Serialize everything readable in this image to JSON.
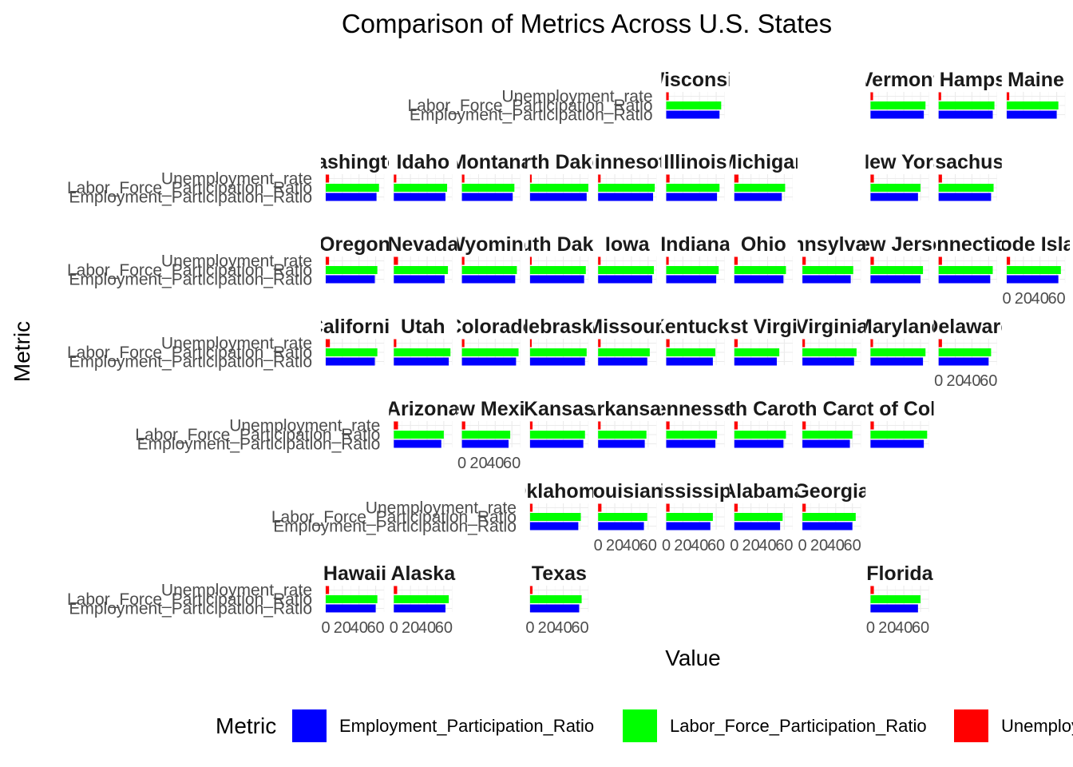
{
  "chart_data": {
    "type": "bar",
    "orientation": "horizontal",
    "layout": "faceted geographic grid",
    "title": "Comparison of Metrics Across U.S. States",
    "xlabel": "Value",
    "ylabel": "Metric",
    "xlim": [
      0,
      70
    ],
    "x_ticks": [
      "0",
      "20",
      "40",
      "60"
    ],
    "metrics": [
      "Employment_Participation_Ratio",
      "Labor_Force_Participation_Ratio",
      "Unemployment_rate"
    ],
    "legend": {
      "title": "Metric",
      "position": "bottom",
      "entries": [
        {
          "label": "Employment_Participation_Ratio",
          "color": "#0000ff"
        },
        {
          "label": "Labor_Force_Participation_Ratio",
          "color": "#00ff00"
        },
        {
          "label": "Unemployment_rate",
          "color": "#ff0000"
        }
      ]
    },
    "facets": [
      {
        "label": "Wisconsin",
        "row": 0,
        "col": 5,
        "values": [
          64,
          66,
          3
        ]
      },
      {
        "label": "Vermont",
        "row": 0,
        "col": 8,
        "values": [
          64,
          66,
          3
        ]
      },
      {
        "label": "New Hampshire",
        "row": 0,
        "col": 9,
        "values": [
          65,
          67,
          3
        ]
      },
      {
        "label": "Maine",
        "row": 0,
        "col": 10,
        "values": [
          60,
          62,
          3
        ]
      },
      {
        "label": "Washington",
        "row": 1,
        "col": 0,
        "values": [
          61,
          64,
          4
        ]
      },
      {
        "label": "Idaho",
        "row": 1,
        "col": 1,
        "values": [
          62,
          64,
          3
        ]
      },
      {
        "label": "Montana",
        "row": 1,
        "col": 2,
        "values": [
          61,
          63,
          3
        ]
      },
      {
        "label": "North Dakota",
        "row": 1,
        "col": 3,
        "values": [
          68,
          70,
          2
        ]
      },
      {
        "label": "Minnesota",
        "row": 1,
        "col": 4,
        "values": [
          66,
          68,
          3
        ]
      },
      {
        "label": "Illinois",
        "row": 1,
        "col": 5,
        "values": [
          61,
          64,
          4
        ]
      },
      {
        "label": "Michigan",
        "row": 1,
        "col": 6,
        "values": [
          57,
          61,
          5
        ]
      },
      {
        "label": "New York",
        "row": 1,
        "col": 8,
        "values": [
          57,
          60,
          4
        ]
      },
      {
        "label": "Massachusetts",
        "row": 1,
        "col": 9,
        "values": [
          63,
          66,
          4
        ]
      },
      {
        "label": "Oregon",
        "row": 2,
        "col": 0,
        "values": [
          59,
          62,
          4
        ]
      },
      {
        "label": "Nevada",
        "row": 2,
        "col": 1,
        "values": [
          61,
          65,
          5
        ]
      },
      {
        "label": "Wyoming",
        "row": 2,
        "col": 2,
        "values": [
          64,
          66,
          3
        ]
      },
      {
        "label": "South Dakota",
        "row": 2,
        "col": 3,
        "values": [
          65,
          67,
          2
        ]
      },
      {
        "label": "Iowa",
        "row": 2,
        "col": 4,
        "values": [
          65,
          67,
          3
        ]
      },
      {
        "label": "Indiana",
        "row": 2,
        "col": 5,
        "values": [
          60,
          63,
          3
        ]
      },
      {
        "label": "Ohio",
        "row": 2,
        "col": 6,
        "values": [
          59,
          62,
          4
        ]
      },
      {
        "label": "Pennsylvania",
        "row": 2,
        "col": 7,
        "values": [
          58,
          61,
          4
        ]
      },
      {
        "label": "New Jersey",
        "row": 2,
        "col": 8,
        "values": [
          60,
          63,
          4
        ]
      },
      {
        "label": "Connecticut",
        "row": 2,
        "col": 9,
        "values": [
          62,
          65,
          4
        ]
      },
      {
        "label": "Rhode Island",
        "row": 2,
        "col": 10,
        "values": [
          62,
          65,
          4
        ]
      },
      {
        "label": "California",
        "row": 3,
        "col": 0,
        "values": [
          59,
          62,
          5
        ]
      },
      {
        "label": "Utah",
        "row": 3,
        "col": 1,
        "values": [
          66,
          68,
          3
        ]
      },
      {
        "label": "Colorado",
        "row": 3,
        "col": 2,
        "values": [
          65,
          68,
          3
        ]
      },
      {
        "label": "Nebraska",
        "row": 3,
        "col": 3,
        "values": [
          66,
          68,
          2
        ]
      },
      {
        "label": "Missouri",
        "row": 3,
        "col": 4,
        "values": [
          59,
          62,
          3
        ]
      },
      {
        "label": "Kentucky",
        "row": 3,
        "col": 5,
        "values": [
          56,
          59,
          4
        ]
      },
      {
        "label": "West Virginia",
        "row": 3,
        "col": 6,
        "values": [
          51,
          54,
          4
        ]
      },
      {
        "label": "Virginia",
        "row": 3,
        "col": 7,
        "values": [
          62,
          65,
          3
        ]
      },
      {
        "label": "Maryland",
        "row": 3,
        "col": 8,
        "values": [
          63,
          66,
          3
        ]
      },
      {
        "label": "Delaware",
        "row": 3,
        "col": 9,
        "values": [
          60,
          63,
          4
        ]
      },
      {
        "label": "Arizona",
        "row": 4,
        "col": 1,
        "values": [
          57,
          60,
          5
        ]
      },
      {
        "label": "New Mexico",
        "row": 4,
        "col": 2,
        "values": [
          56,
          58,
          4
        ]
      },
      {
        "label": "Kansas",
        "row": 4,
        "col": 3,
        "values": [
          64,
          66,
          3
        ]
      },
      {
        "label": "Arkansas",
        "row": 4,
        "col": 4,
        "values": [
          56,
          58,
          3
        ]
      },
      {
        "label": "Tennessee",
        "row": 4,
        "col": 5,
        "values": [
          59,
          61,
          4
        ]
      },
      {
        "label": "North Carolina",
        "row": 4,
        "col": 6,
        "values": [
          59,
          62,
          4
        ]
      },
      {
        "label": "South Carolina",
        "row": 4,
        "col": 7,
        "values": [
          57,
          60,
          4
        ]
      },
      {
        "label": "District of Columbia",
        "row": 4,
        "col": 8,
        "values": [
          64,
          68,
          4
        ]
      },
      {
        "label": "Oklahoma",
        "row": 5,
        "col": 3,
        "values": [
          58,
          61,
          3
        ]
      },
      {
        "label": "Louisiana",
        "row": 5,
        "col": 4,
        "values": [
          55,
          59,
          4
        ]
      },
      {
        "label": "Mississippi",
        "row": 5,
        "col": 5,
        "values": [
          53,
          56,
          4
        ]
      },
      {
        "label": "Alabama",
        "row": 5,
        "col": 6,
        "values": [
          55,
          58,
          4
        ]
      },
      {
        "label": "Georgia",
        "row": 5,
        "col": 7,
        "values": [
          60,
          64,
          4
        ]
      },
      {
        "label": "Hawaii",
        "row": 6,
        "col": 0,
        "values": [
          60,
          62,
          4
        ]
      },
      {
        "label": "Alaska",
        "row": 6,
        "col": 1,
        "values": [
          62,
          66,
          4
        ]
      },
      {
        "label": "Texas",
        "row": 6,
        "col": 3,
        "values": [
          59,
          62,
          3
        ]
      },
      {
        "label": "Florida",
        "row": 6,
        "col": 8,
        "values": [
          57,
          60,
          4
        ]
      }
    ]
  }
}
